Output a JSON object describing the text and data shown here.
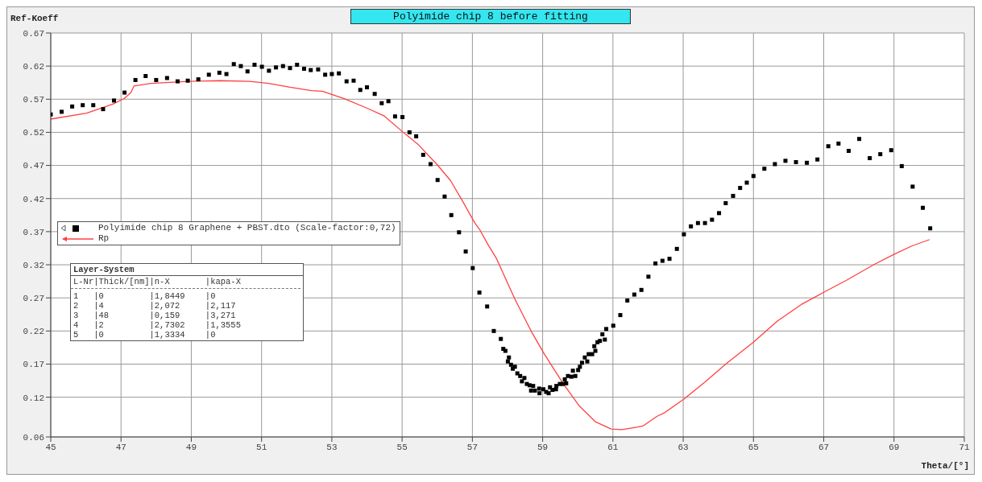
{
  "chart_data": {
    "type": "scatter",
    "title": "Polyimide chip 8 before fitting",
    "xlabel": "Theta/[°]",
    "ylabel": "Ref-Koeff",
    "xlim": [
      45,
      71
    ],
    "xticks": [
      45,
      47,
      49,
      51,
      53,
      55,
      57,
      59,
      61,
      63,
      65,
      67,
      69,
      71
    ],
    "ylim": [
      0.06,
      0.67
    ],
    "yticks": [
      0.06,
      0.12,
      0.17,
      0.22,
      0.27,
      0.32,
      0.37,
      0.42,
      0.47,
      0.52,
      0.57,
      0.62,
      0.67
    ],
    "grid": true,
    "legend": "left",
    "annotations": [
      "Layer-System",
      "L-Nr|Thick/[nm]|n-X       |kapa-X",
      "1   |0         |1,8449    |0",
      "2   |4         |2,072     |2,117",
      "3   |48        |0,159     |3,271",
      "4   |2         |2,7302    |1,3555",
      "5   |0         |1,3334    |0"
    ],
    "series": [
      {
        "name": "Polyimide chip 8 Graphene + PBST.dto (Scale-factor:0,72)",
        "type": "scatter",
        "marker": "square",
        "color": "#000000",
        "x": [
          45.0,
          45.31,
          45.61,
          45.91,
          46.21,
          46.49,
          46.8,
          47.1,
          47.41,
          47.7,
          48.0,
          48.31,
          48.61,
          48.9,
          49.2,
          49.5,
          49.8,
          50.0,
          50.21,
          50.41,
          50.6,
          50.8,
          51.01,
          51.21,
          51.41,
          51.61,
          51.81,
          52.01,
          52.21,
          52.4,
          52.61,
          52.81,
          53.0,
          53.2,
          53.42,
          53.62,
          53.81,
          54.0,
          54.22,
          54.42,
          54.61,
          54.8,
          55.01,
          55.21,
          55.4,
          55.6,
          55.81,
          56.01,
          56.21,
          56.4,
          56.62,
          56.81,
          57.01,
          57.2,
          57.42,
          57.61,
          57.81,
          57.88,
          57.94,
          58.01,
          58.04,
          58.1,
          58.15,
          58.21,
          58.28,
          58.36,
          58.41,
          58.48,
          58.55,
          58.63,
          58.67,
          58.73,
          58.78,
          58.9,
          58.91,
          59.02,
          59.1,
          59.17,
          59.21,
          59.28,
          59.38,
          59.39,
          59.49,
          59.57,
          59.63,
          59.67,
          59.72,
          59.82,
          59.86,
          59.93,
          60.01,
          60.06,
          60.12,
          60.2,
          60.27,
          60.31,
          60.41,
          60.47,
          60.5,
          60.56,
          60.63,
          60.7,
          60.77,
          60.81,
          61.01,
          61.21,
          61.41,
          61.61,
          61.81,
          62.01,
          62.21,
          62.41,
          62.61,
          62.82,
          63.02,
          63.22,
          63.42,
          63.62,
          63.82,
          64.02,
          64.21,
          64.42,
          64.62,
          64.81,
          65.0,
          65.31,
          65.61,
          65.91,
          66.21,
          66.52,
          66.82,
          67.13,
          67.42,
          67.71,
          68.01,
          68.31,
          68.61,
          68.92,
          69.22,
          69.53,
          69.82,
          70.03
        ],
        "values": [
          0.547,
          0.551,
          0.559,
          0.561,
          0.561,
          0.555,
          0.568,
          0.58,
          0.599,
          0.605,
          0.599,
          0.602,
          0.597,
          0.598,
          0.6,
          0.607,
          0.61,
          0.608,
          0.623,
          0.62,
          0.612,
          0.622,
          0.619,
          0.613,
          0.618,
          0.62,
          0.617,
          0.622,
          0.616,
          0.614,
          0.615,
          0.607,
          0.608,
          0.609,
          0.597,
          0.598,
          0.584,
          0.588,
          0.578,
          0.564,
          0.567,
          0.544,
          0.543,
          0.52,
          0.514,
          0.486,
          0.472,
          0.448,
          0.423,
          0.395,
          0.369,
          0.34,
          0.315,
          0.278,
          0.257,
          0.22,
          0.208,
          0.193,
          0.19,
          0.174,
          0.18,
          0.169,
          0.163,
          0.166,
          0.156,
          0.152,
          0.144,
          0.149,
          0.14,
          0.138,
          0.13,
          0.137,
          0.13,
          0.133,
          0.126,
          0.132,
          0.128,
          0.126,
          0.135,
          0.131,
          0.132,
          0.137,
          0.14,
          0.14,
          0.147,
          0.141,
          0.152,
          0.151,
          0.16,
          0.152,
          0.161,
          0.166,
          0.172,
          0.18,
          0.174,
          0.185,
          0.185,
          0.197,
          0.19,
          0.203,
          0.205,
          0.215,
          0.207,
          0.223,
          0.228,
          0.244,
          0.266,
          0.275,
          0.282,
          0.302,
          0.322,
          0.326,
          0.329,
          0.344,
          0.366,
          0.378,
          0.383,
          0.383,
          0.388,
          0.398,
          0.413,
          0.424,
          0.436,
          0.444,
          0.454,
          0.465,
          0.472,
          0.477,
          0.475,
          0.474,
          0.479,
          0.499,
          0.503,
          0.492,
          0.51,
          0.481,
          0.487,
          0.493,
          0.469,
          0.438,
          0.406,
          0.375
        ]
      },
      {
        "name": "Rp",
        "type": "line",
        "marker": "none",
        "line_style": "solid",
        "color": "#ff4040",
        "x": [
          45.0,
          46.02,
          46.78,
          47.09,
          47.28,
          47.37,
          47.85,
          48.92,
          49.83,
          50.67,
          51.2,
          51.81,
          52.42,
          52.73,
          53.34,
          53.98,
          54.48,
          55.01,
          55.47,
          56.0,
          56.38,
          56.69,
          57.07,
          57.22,
          57.45,
          57.68,
          58.21,
          58.67,
          59.05,
          59.58,
          60.04,
          60.5,
          60.95,
          61.26,
          61.71,
          61.87,
          62.25,
          62.48,
          63.02,
          63.62,
          64.23,
          65.0,
          65.68,
          66.36,
          67.02,
          67.66,
          68.42,
          69.01,
          69.49,
          70.01
        ],
        "values": [
          0.54,
          0.549,
          0.563,
          0.571,
          0.58,
          0.59,
          0.594,
          0.597,
          0.598,
          0.597,
          0.594,
          0.588,
          0.583,
          0.582,
          0.571,
          0.557,
          0.545,
          0.521,
          0.501,
          0.471,
          0.447,
          0.419,
          0.383,
          0.372,
          0.35,
          0.33,
          0.268,
          0.22,
          0.185,
          0.141,
          0.107,
          0.083,
          0.072,
          0.071,
          0.075,
          0.077,
          0.091,
          0.097,
          0.117,
          0.143,
          0.171,
          0.203,
          0.235,
          0.26,
          0.279,
          0.297,
          0.32,
          0.336,
          0.348,
          0.358
        ]
      }
    ]
  }
}
